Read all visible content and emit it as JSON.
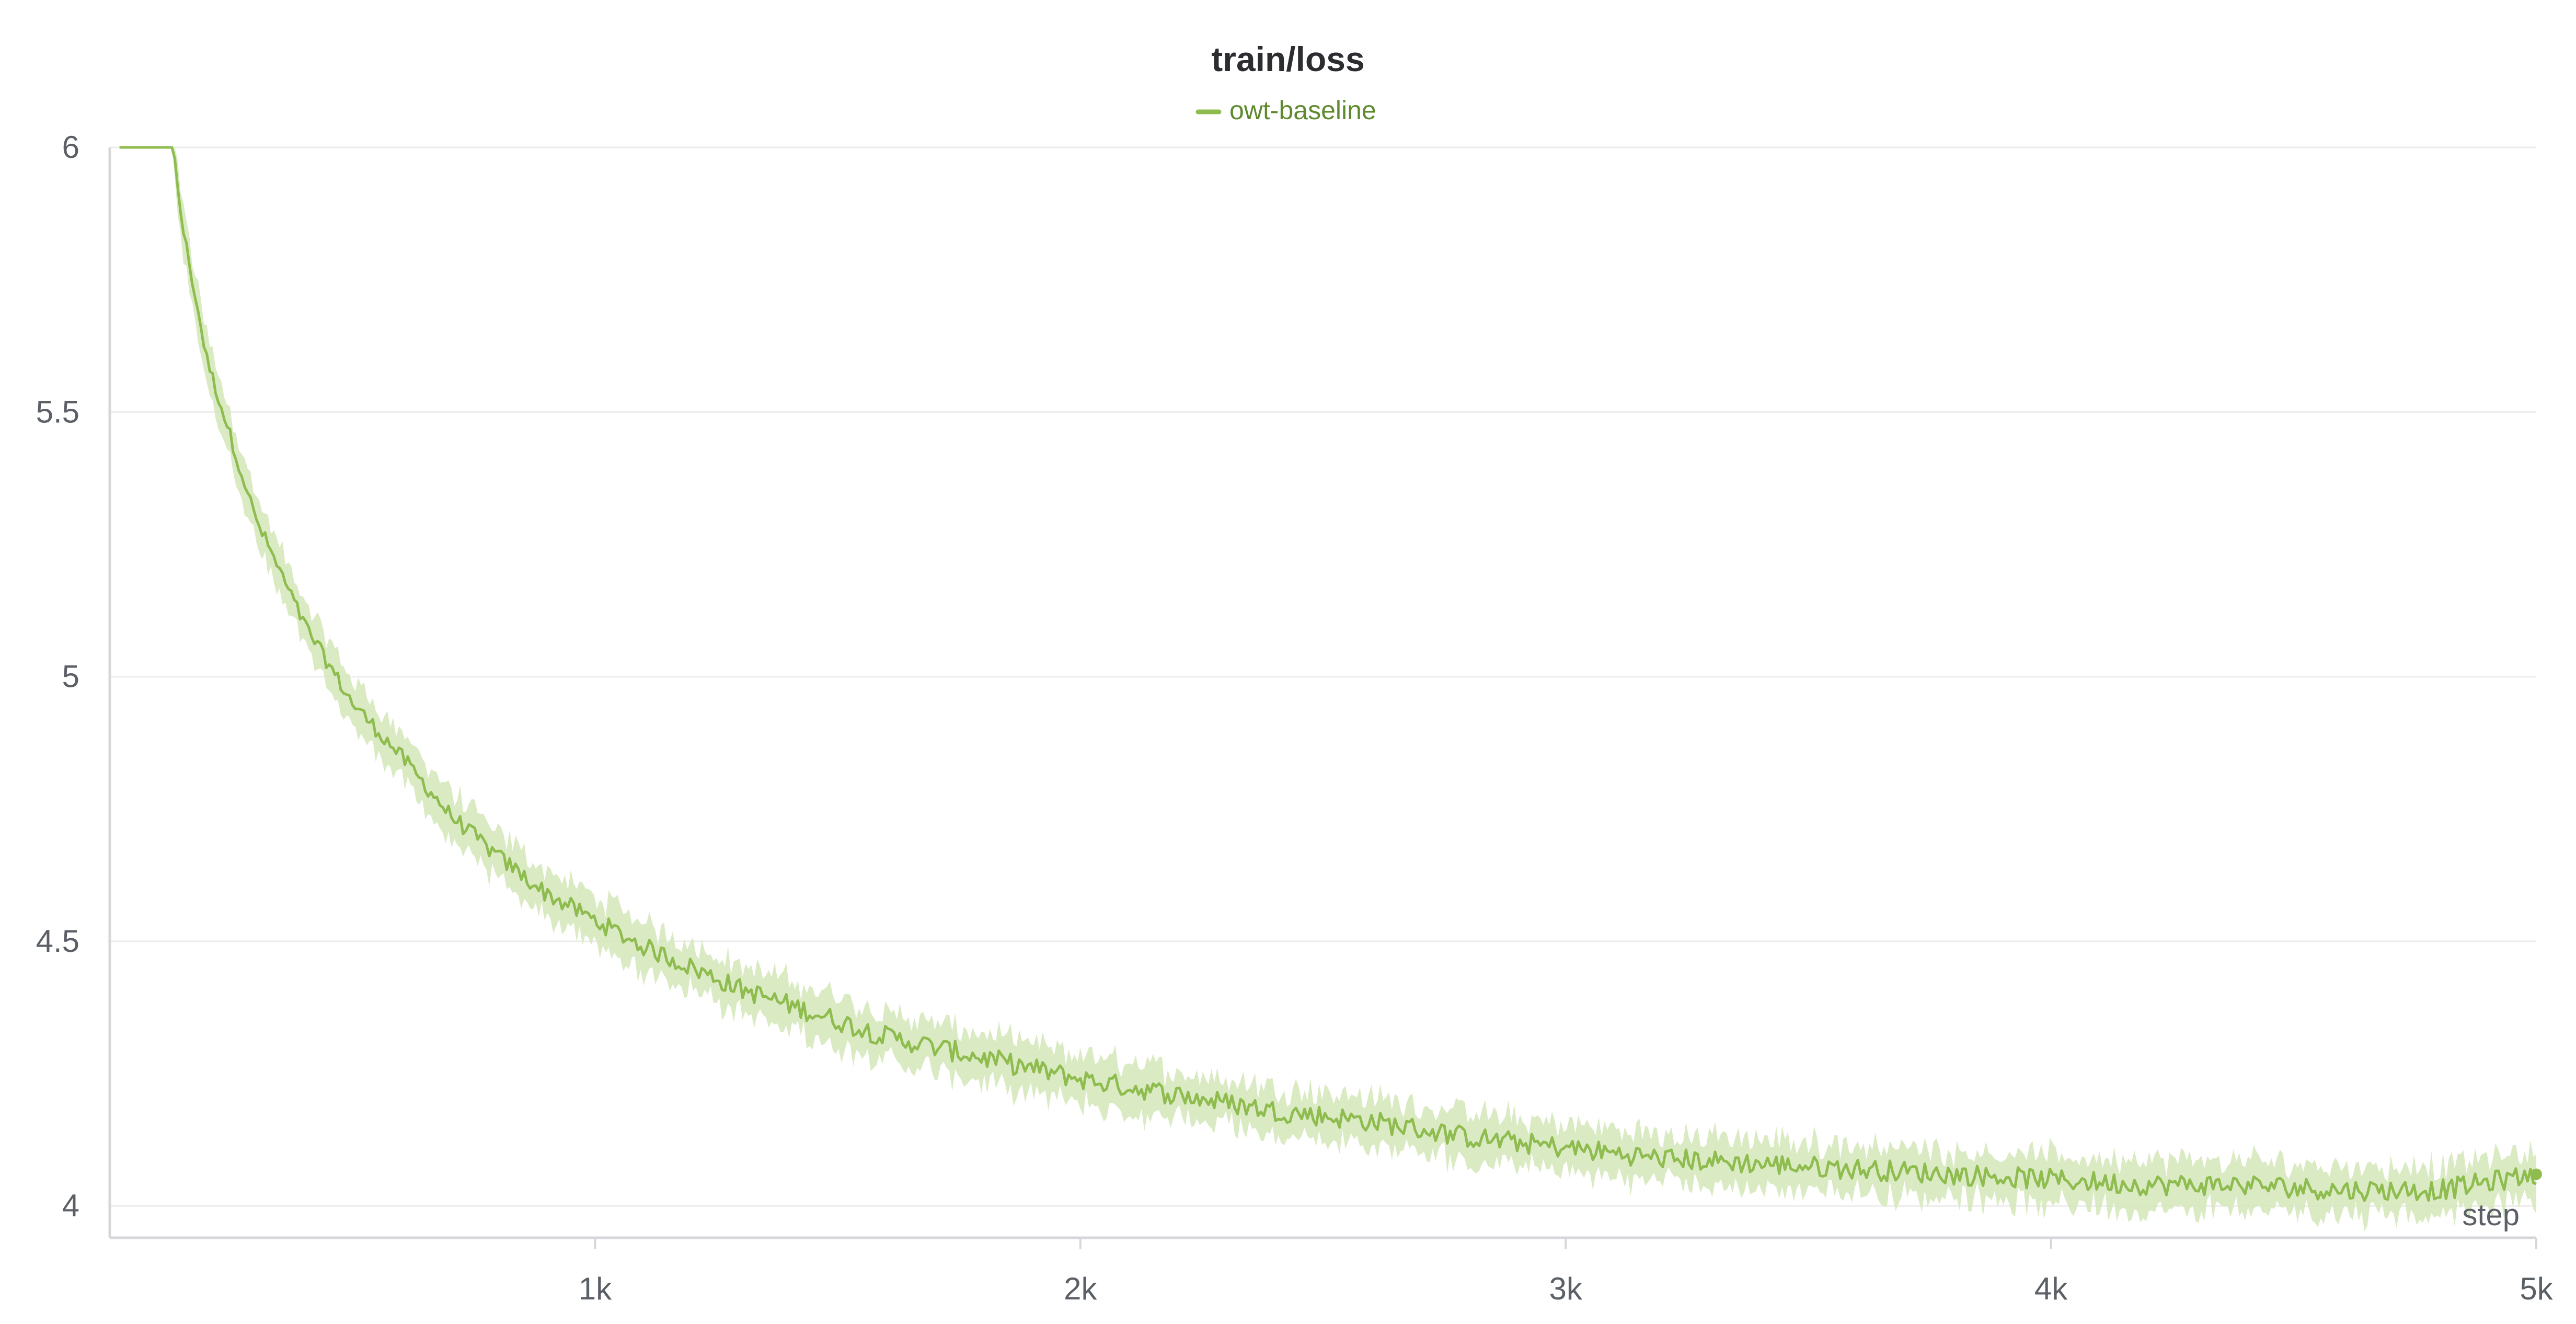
{
  "chart_data": {
    "type": "line",
    "title": "train/loss",
    "xlabel": "step",
    "ylabel": "",
    "xlim": [
      0,
      5000
    ],
    "ylim": [
      3.94,
      6.0
    ],
    "x_ticks": [
      1000,
      2000,
      3000,
      4000,
      5000
    ],
    "x_tick_labels": [
      "1k",
      "2k",
      "3k",
      "4k",
      "5k"
    ],
    "y_ticks": [
      4,
      4.5,
      5,
      5.5,
      6
    ],
    "y_tick_labels": [
      "4",
      "4.5",
      "5",
      "5.5",
      "6"
    ],
    "grid": "horizontal",
    "legend": "top-center",
    "series": [
      {
        "name": "owt-baseline",
        "color": "#8fbc4f",
        "band_color": "#d4e8b8",
        "x": [
          20,
          130,
          150,
          200,
          250,
          300,
          400,
          500,
          600,
          700,
          800,
          900,
          1000,
          1100,
          1200,
          1300,
          1400,
          1500,
          1600,
          1700,
          1800,
          1900,
          2000,
          2200,
          2400,
          2600,
          2800,
          3000,
          3200,
          3400,
          3600,
          3800,
          4000,
          4200,
          4400,
          4600,
          4800,
          5000
        ],
        "values": [
          6.0,
          6.0,
          5.85,
          5.6,
          5.45,
          5.3,
          5.1,
          4.95,
          4.85,
          4.74,
          4.66,
          4.59,
          4.54,
          4.49,
          4.45,
          4.41,
          4.38,
          4.35,
          4.32,
          4.3,
          4.28,
          4.26,
          4.24,
          4.21,
          4.18,
          4.16,
          4.13,
          4.11,
          4.09,
          4.08,
          4.07,
          4.06,
          4.05,
          4.04,
          4.04,
          4.03,
          4.03,
          4.06
        ]
      }
    ]
  }
}
